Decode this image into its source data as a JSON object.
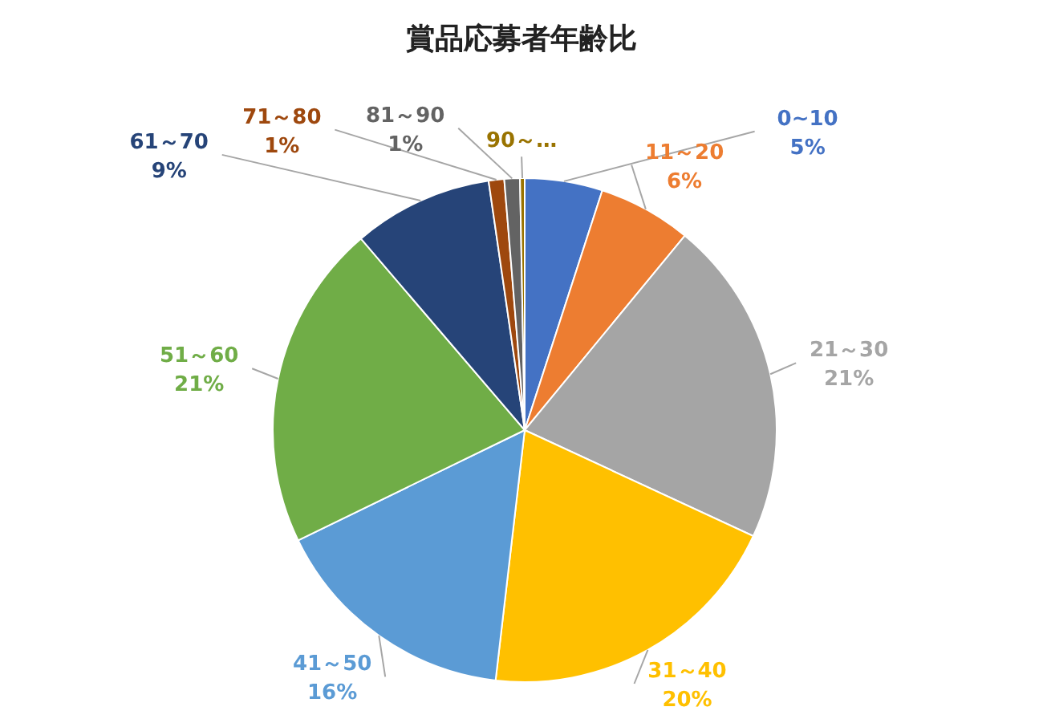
{
  "chart_data": {
    "type": "pie",
    "title": "賞品応募者年齢比",
    "categories": [
      "0~10",
      "11～20",
      "21～30",
      "31～40",
      "41～50",
      "51～60",
      "61～70",
      "71～80",
      "81～90",
      "90～…"
    ],
    "values": [
      5,
      6,
      21,
      20,
      16,
      21,
      9,
      1,
      1,
      0.3
    ],
    "value_labels": [
      "5%",
      "6%",
      "21%",
      "20%",
      "16%",
      "21%",
      "9%",
      "1%",
      "1%",
      null
    ],
    "colors": [
      "#4472c4",
      "#ed7d31",
      "#a5a5a5",
      "#ffc000",
      "#5b9bd5",
      "#70ad47",
      "#264478",
      "#9e480e",
      "#636363",
      "#997300"
    ]
  }
}
